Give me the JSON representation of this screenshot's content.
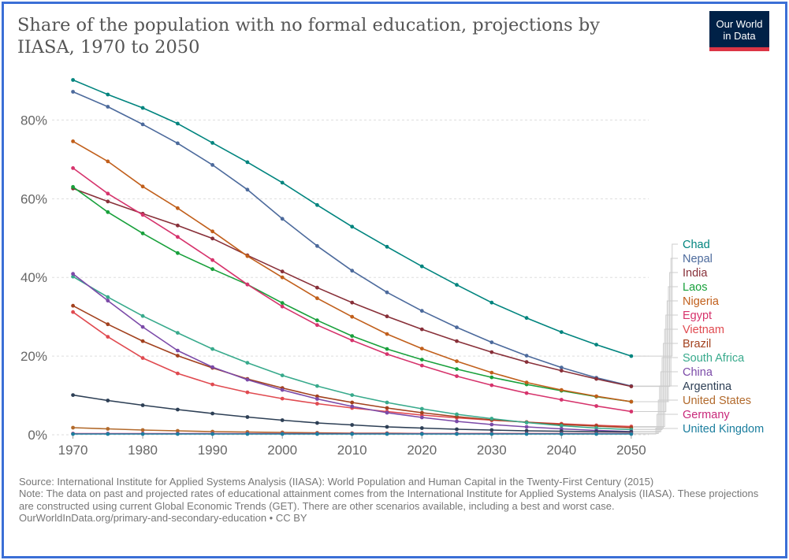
{
  "header": {
    "title": "Share of the population with no formal education, projections by IIASA, 1970 to 2050",
    "logo_line1": "Our World",
    "logo_line2": "in Data"
  },
  "footer": {
    "source": "Source: International Institute for Applied Systems Analysis (IIASA): World Population and Human Capital in the Twenty-First Century (2015)",
    "note": "Note: The data on past and projected rates of educational attainment comes from the International Institute for Applied Systems Analysis (IIASA). These projections are constructed using current Global Economic Trends (GET). There are other scenarios available, including a best and worst case.",
    "url": "OurWorldInData.org/primary-and-secondary-education • CC BY"
  },
  "chart_data": {
    "type": "line",
    "title": "Share of the population with no formal education, projections by IIASA, 1970 to 2050",
    "xlabel": "",
    "ylabel": "",
    "xlim": [
      1970,
      2050
    ],
    "ylim": [
      0,
      90
    ],
    "x_ticks": [
      1970,
      1980,
      1990,
      2000,
      2010,
      2020,
      2030,
      2040,
      2050
    ],
    "y_ticks": [
      0,
      20,
      40,
      60,
      80
    ],
    "y_tick_labels": [
      "0%",
      "20%",
      "40%",
      "60%",
      "80%"
    ],
    "grid": true,
    "legend_position": "right",
    "x": [
      1970,
      1975,
      1980,
      1985,
      1990,
      1995,
      2000,
      2005,
      2010,
      2015,
      2020,
      2025,
      2030,
      2035,
      2040,
      2045,
      2050
    ],
    "series": [
      {
        "name": "Chad",
        "color": "#00847e",
        "values": [
          90.2,
          86.5,
          83.1,
          79.1,
          74.2,
          69.3,
          64.1,
          58.4,
          52.9,
          47.8,
          42.8,
          38.1,
          33.6,
          29.7,
          26.1,
          22.9,
          20.0
        ]
      },
      {
        "name": "Nepal",
        "color": "#4c6a9c",
        "values": [
          87.2,
          83.4,
          78.9,
          74.1,
          68.6,
          62.3,
          54.9,
          48.0,
          41.7,
          36.2,
          31.5,
          27.3,
          23.5,
          20.1,
          17.1,
          14.5,
          12.4
        ]
      },
      {
        "name": "India",
        "color": "#883039",
        "values": [
          62.6,
          59.3,
          56.2,
          53.2,
          49.9,
          45.6,
          41.5,
          37.4,
          33.6,
          30.1,
          26.8,
          23.8,
          21.0,
          18.5,
          16.3,
          14.2,
          12.3
        ]
      },
      {
        "name": "Laos",
        "color": "#18a03b",
        "values": [
          63.0,
          56.6,
          51.2,
          46.2,
          42.1,
          38.2,
          33.5,
          29.1,
          25.1,
          21.8,
          19.1,
          16.7,
          14.6,
          12.8,
          11.2,
          9.7,
          8.4
        ]
      },
      {
        "name": "Nigeria",
        "color": "#c15f1b",
        "values": [
          74.6,
          69.5,
          63.1,
          57.6,
          51.7,
          45.4,
          40.0,
          34.7,
          30.0,
          25.6,
          21.9,
          18.7,
          15.8,
          13.3,
          11.4,
          9.8,
          8.4
        ]
      },
      {
        "name": "Egypt",
        "color": "#d6336c",
        "values": [
          67.8,
          61.3,
          55.9,
          50.3,
          44.4,
          38.2,
          32.6,
          27.9,
          24.0,
          20.5,
          17.6,
          14.9,
          12.6,
          10.6,
          8.9,
          7.3,
          5.9
        ]
      },
      {
        "name": "Vietnam",
        "color": "#e04a50",
        "values": [
          31.2,
          24.9,
          19.5,
          15.6,
          12.8,
          10.8,
          9.2,
          7.9,
          6.8,
          5.9,
          5.0,
          4.3,
          3.7,
          3.2,
          2.8,
          2.4,
          2.1
        ]
      },
      {
        "name": "Brazil",
        "color": "#a2411e",
        "values": [
          32.8,
          28.1,
          23.8,
          20.1,
          17.0,
          14.2,
          11.9,
          9.8,
          8.2,
          6.8,
          5.6,
          4.6,
          3.8,
          3.2,
          2.6,
          2.2,
          1.8
        ]
      },
      {
        "name": "South Africa",
        "color": "#38aa8c",
        "values": [
          40.2,
          35.0,
          30.2,
          25.9,
          21.8,
          18.3,
          15.1,
          12.4,
          10.1,
          8.2,
          6.6,
          5.2,
          4.1,
          3.1,
          2.3,
          1.7,
          1.3
        ]
      },
      {
        "name": "China",
        "color": "#7b4aa8",
        "values": [
          40.9,
          34.1,
          27.4,
          21.4,
          17.2,
          14.0,
          11.4,
          9.1,
          7.2,
          5.6,
          4.4,
          3.4,
          2.6,
          2.0,
          1.5,
          1.1,
          0.8
        ]
      },
      {
        "name": "Argentina",
        "color": "#2d3f55",
        "values": [
          10.1,
          8.7,
          7.5,
          6.4,
          5.4,
          4.5,
          3.7,
          3.0,
          2.5,
          2.0,
          1.7,
          1.4,
          1.2,
          1.0,
          0.9,
          0.8,
          0.7
        ]
      },
      {
        "name": "United States",
        "color": "#b26a2c",
        "values": [
          1.8,
          1.5,
          1.2,
          1.0,
          0.8,
          0.7,
          0.6,
          0.5,
          0.4,
          0.4,
          0.3,
          0.3,
          0.3,
          0.3,
          0.3,
          0.3,
          0.3
        ]
      },
      {
        "name": "Germany",
        "color": "#c8287a",
        "values": [
          0.3,
          0.3,
          0.3,
          0.3,
          0.3,
          0.3,
          0.3,
          0.3,
          0.3,
          0.3,
          0.3,
          0.3,
          0.3,
          0.3,
          0.3,
          0.3,
          0.3
        ]
      },
      {
        "name": "United Kingdom",
        "color": "#1b7e9e",
        "values": [
          0.2,
          0.2,
          0.2,
          0.2,
          0.2,
          0.2,
          0.2,
          0.2,
          0.2,
          0.2,
          0.2,
          0.2,
          0.2,
          0.2,
          0.2,
          0.2,
          0.2
        ]
      }
    ]
  }
}
